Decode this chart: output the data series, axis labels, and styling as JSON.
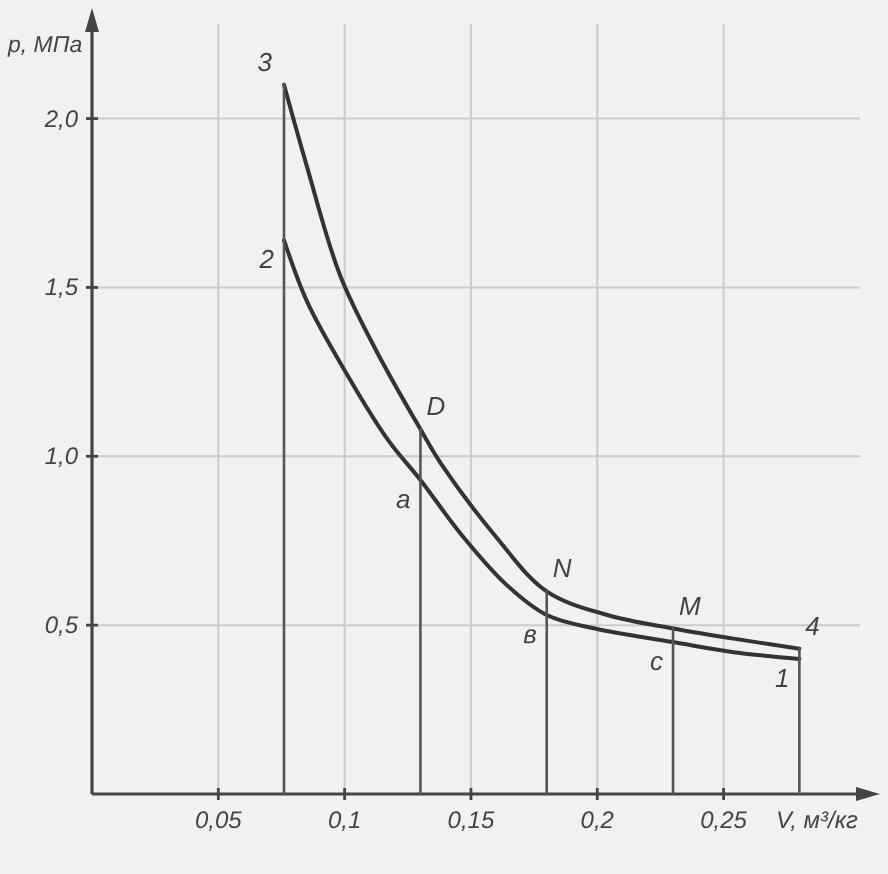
{
  "chart_data": {
    "type": "line",
    "xlabel": "V, м³/кг",
    "ylabel": "p, МПа",
    "xlim": [
      0,
      0.304
    ],
    "ylim": [
      0,
      2.28
    ],
    "xticks": [
      {
        "value": 0.05,
        "label": "0,05"
      },
      {
        "value": 0.1,
        "label": "0,1"
      },
      {
        "value": 0.15,
        "label": "0,15"
      },
      {
        "value": 0.2,
        "label": "0,2"
      },
      {
        "value": 0.25,
        "label": "0,25"
      }
    ],
    "yticks": [
      {
        "value": 0.5,
        "label": "0,5"
      },
      {
        "value": 1,
        "label": "1,0"
      },
      {
        "value": 1.5,
        "label": "1,5"
      },
      {
        "value": 2,
        "label": "2,0"
      }
    ],
    "grid": true,
    "series": [
      {
        "color": "#333333",
        "x": [
          0.076,
          0.085,
          0.098,
          0.112,
          0.13,
          0.138,
          0.159,
          0.18,
          0.204,
          0.23,
          0.254,
          0.28
        ],
        "values": [
          2.1,
          1.86,
          1.54,
          1.32,
          1.08,
          0.98,
          0.77,
          0.6,
          0.53,
          0.49,
          0.46,
          0.43
        ]
      },
      {
        "color": "#333333",
        "x": [
          0.076,
          0.085,
          0.098,
          0.117,
          0.13,
          0.146,
          0.164,
          0.18,
          0.199,
          0.23,
          0.254,
          0.28
        ],
        "values": [
          1.64,
          1.46,
          1.28,
          1.05,
          0.93,
          0.77,
          0.62,
          0.53,
          0.49,
          0.45,
          0.42,
          0.4
        ]
      },
      {
        "color": "#555555",
        "x": [
          0.076,
          0.076
        ],
        "values": [
          0,
          2.1
        ]
      },
      {
        "color": "#555555",
        "x": [
          0.13,
          0.13
        ],
        "values": [
          0,
          1.08
        ]
      },
      {
        "color": "#555555",
        "x": [
          0.18,
          0.18
        ],
        "values": [
          0,
          0.6
        ]
      },
      {
        "color": "#555555",
        "x": [
          0.23,
          0.23
        ],
        "values": [
          0,
          0.49
        ]
      },
      {
        "color": "#555555",
        "x": [
          0.28,
          0.28
        ],
        "values": [
          0,
          0.43
        ]
      }
    ],
    "annotations": [
      {
        "text": "3",
        "x": 0.076,
        "y": 2.1
      },
      {
        "text": "2",
        "x": 0.076,
        "y": 1.64
      },
      {
        "text": "D",
        "x": 0.13,
        "y": 1.08
      },
      {
        "text": "a",
        "x": 0.13,
        "y": 0.93
      },
      {
        "text": "N",
        "x": 0.18,
        "y": 0.6
      },
      {
        "text": "в",
        "x": 0.18,
        "y": 0.53
      },
      {
        "text": "M",
        "x": 0.23,
        "y": 0.49
      },
      {
        "text": "c",
        "x": 0.23,
        "y": 0.45
      },
      {
        "text": "4",
        "x": 0.28,
        "y": 0.43
      },
      {
        "text": "1",
        "x": 0.28,
        "y": 0.4
      }
    ]
  }
}
